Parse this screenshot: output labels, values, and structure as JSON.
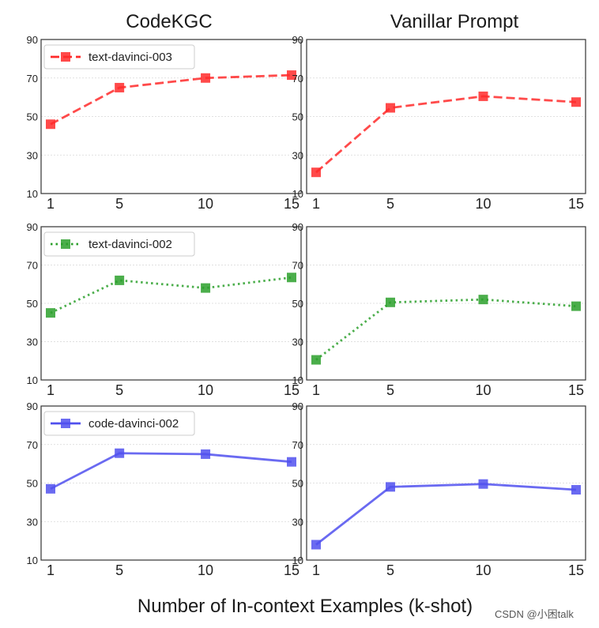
{
  "figure": {
    "column_titles": [
      "CodeKGC",
      "Vanillar Prompt"
    ],
    "xlabel": "Number of In-context Examples (k-shot)",
    "watermark": "CSDN @小困talk"
  },
  "chart_data": [
    {
      "type": "line",
      "title": "CodeKGC",
      "series_name": "text-davinci-003",
      "show_legend": true,
      "color": "#ff2a2a",
      "line_style": "dashed",
      "marker": "square",
      "x": [
        1,
        5,
        10,
        15
      ],
      "y": [
        46,
        65,
        70,
        71.5
      ],
      "x_ticks": [
        "1",
        "5",
        "10",
        "15"
      ],
      "y_ticks": [
        10,
        30,
        50,
        70,
        90
      ],
      "ylim": [
        10,
        90
      ],
      "grid": "horizontal"
    },
    {
      "type": "line",
      "title": "Vanillar Prompt",
      "series_name": "text-davinci-003",
      "show_legend": false,
      "color": "#ff2a2a",
      "line_style": "dashed",
      "marker": "square",
      "x": [
        1,
        5,
        10,
        15
      ],
      "y": [
        21,
        54.5,
        60.5,
        57.5
      ],
      "x_ticks": [
        "1",
        "5",
        "10",
        "15"
      ],
      "y_ticks": [
        10,
        30,
        50,
        70,
        90
      ],
      "ylim": [
        10,
        90
      ],
      "grid": "horizontal"
    },
    {
      "type": "line",
      "title": "CodeKGC",
      "series_name": "text-davinci-002",
      "show_legend": true,
      "color": "#2ca02c",
      "line_style": "dotted",
      "marker": "square",
      "x": [
        1,
        5,
        10,
        15
      ],
      "y": [
        45,
        62,
        58,
        63.5
      ],
      "x_ticks": [
        "1",
        "5",
        "10",
        "15"
      ],
      "y_ticks": [
        10,
        30,
        50,
        70,
        90
      ],
      "ylim": [
        10,
        90
      ],
      "grid": "horizontal"
    },
    {
      "type": "line",
      "title": "Vanillar Prompt",
      "series_name": "text-davinci-002",
      "show_legend": false,
      "color": "#2ca02c",
      "line_style": "dotted",
      "marker": "square",
      "x": [
        1,
        5,
        10,
        15
      ],
      "y": [
        20.5,
        50.5,
        52,
        48.5
      ],
      "x_ticks": [
        "1",
        "5",
        "10",
        "15"
      ],
      "y_ticks": [
        10,
        30,
        50,
        70,
        90
      ],
      "ylim": [
        10,
        90
      ],
      "grid": "horizontal"
    },
    {
      "type": "line",
      "title": "CodeKGC",
      "series_name": "code-davinci-002",
      "show_legend": true,
      "color": "#5050ee",
      "line_style": "solid",
      "marker": "square",
      "x": [
        1,
        5,
        10,
        15
      ],
      "y": [
        47,
        65.5,
        65,
        61
      ],
      "x_ticks": [
        "1",
        "5",
        "10",
        "15"
      ],
      "y_ticks": [
        10,
        30,
        50,
        70,
        90
      ],
      "ylim": [
        10,
        90
      ],
      "grid": "horizontal"
    },
    {
      "type": "line",
      "title": "Vanillar Prompt",
      "series_name": "code-davinci-002",
      "show_legend": false,
      "color": "#5050ee",
      "line_style": "solid",
      "marker": "square",
      "x": [
        1,
        5,
        10,
        15
      ],
      "y": [
        18,
        48,
        49.5,
        46.5
      ],
      "x_ticks": [
        "1",
        "5",
        "10",
        "15"
      ],
      "y_ticks": [
        10,
        30,
        50,
        70,
        90
      ],
      "ylim": [
        10,
        90
      ],
      "grid": "horizontal"
    }
  ]
}
